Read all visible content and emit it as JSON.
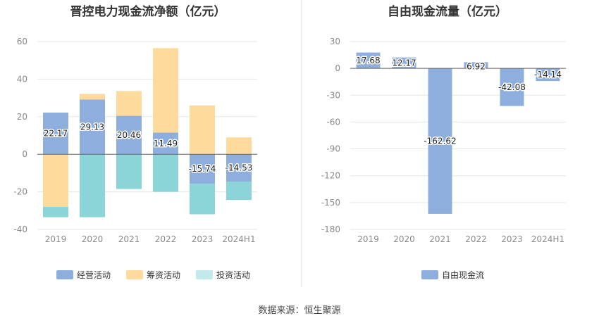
{
  "colors": {
    "operating": "#8eaedd",
    "financing": "#fedb9c",
    "investing": "#8bd5d9",
    "investing_legend": "#c2e9ec",
    "free_cash_flow": "#8eaedd",
    "grid": "#e6e6e6",
    "zero_line": "#666666"
  },
  "footer": {
    "source": "数据来源：恒生聚源"
  },
  "chart_data": [
    {
      "type": "bar",
      "stacked": true,
      "title": "晋控电力现金流净额（亿元）",
      "categories": [
        "2019",
        "2020",
        "2021",
        "2022",
        "2023",
        "2024H1"
      ],
      "ylim": [
        -40,
        60
      ],
      "yticks": [
        60,
        40,
        20,
        0,
        -20,
        -40
      ],
      "grid": true,
      "legend_position": "bottom",
      "series": [
        {
          "name": "经营活动",
          "color_key": "operating",
          "values": [
            22.17,
            29.13,
            20.46,
            11.49,
            -15.74,
            -14.53
          ],
          "labels": [
            "22.17",
            "29.13",
            "20.46",
            "11.49",
            "-15.74",
            "-14.53"
          ]
        },
        {
          "name": "筹资活动",
          "color_key": "financing",
          "values": [
            -28.0,
            3.0,
            13.2,
            45.0,
            26.0,
            9.0
          ]
        },
        {
          "name": "投资活动",
          "color_key": "investing",
          "legend_color_key": "investing_legend",
          "values": [
            -5.5,
            -33.5,
            -18.5,
            -20.0,
            -16.2,
            -9.8
          ]
        }
      ]
    },
    {
      "type": "bar",
      "title": "自由现金流量（亿元）",
      "categories": [
        "2019",
        "2020",
        "2021",
        "2022",
        "2023",
        "2024H1"
      ],
      "ylim": [
        -180,
        30
      ],
      "yticks": [
        30,
        0,
        -30,
        -60,
        -90,
        -120,
        -150,
        -180
      ],
      "grid": true,
      "legend_position": "bottom",
      "series": [
        {
          "name": "自由现金流",
          "color_key": "free_cash_flow",
          "values": [
            17.68,
            12.17,
            -162.62,
            6.92,
            -42.08,
            -14.14
          ],
          "labels": [
            "17.68",
            "12.17",
            "-162.62",
            "6.92",
            "-42.08",
            "-14.14"
          ]
        }
      ]
    }
  ]
}
